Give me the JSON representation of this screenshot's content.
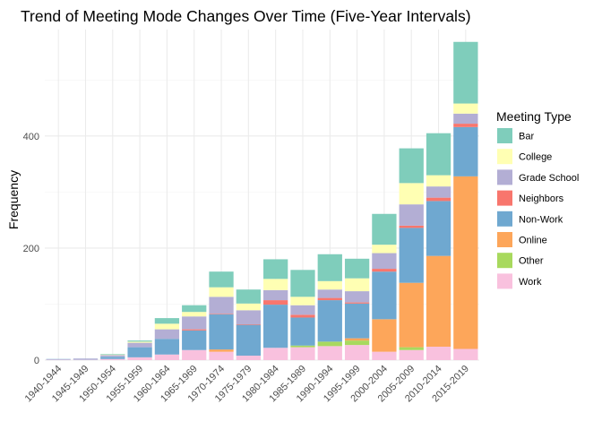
{
  "chart_data": {
    "type": "bar",
    "stacked": true,
    "title": "Trend of Meeting Mode Changes Over Time (Five-Year Intervals)",
    "xlabel": "",
    "ylabel": "Frequency",
    "ylim": [
      0,
      590
    ],
    "y_ticks": [
      0,
      200,
      400
    ],
    "grid": true,
    "legend_title": "Meeting Type",
    "legend_position": "right",
    "categories": [
      "1940-1944",
      "1945-1949",
      "1950-1954",
      "1955-1959",
      "1960-1964",
      "1965-1969",
      "1970-1974",
      "1975-1979",
      "1980-1984",
      "1985-1989",
      "1990-1994",
      "1995-1999",
      "2000-2004",
      "2005-2009",
      "2010-2014",
      "2015-2019"
    ],
    "stack_order": [
      "Work",
      "Other",
      "Online",
      "Non-Work",
      "Neighbors",
      "Grade School",
      "College",
      "Bar"
    ],
    "series": [
      {
        "name": "Bar",
        "color": "#7fcdbb",
        "values": [
          0,
          0,
          1,
          2,
          10,
          12,
          28,
          25,
          35,
          48,
          48,
          35,
          55,
          62,
          75,
          110
        ]
      },
      {
        "name": "College",
        "color": "#ffffb3",
        "values": [
          0,
          0,
          1,
          2,
          10,
          8,
          17,
          12,
          20,
          15,
          15,
          23,
          15,
          38,
          20,
          18
        ]
      },
      {
        "name": "Grade School",
        "color": "#b3aed4",
        "values": [
          0,
          1,
          3,
          8,
          17,
          23,
          30,
          25,
          18,
          17,
          15,
          20,
          28,
          38,
          20,
          18
        ]
      },
      {
        "name": "Neighbors",
        "color": "#f8766d",
        "values": [
          0,
          0,
          0,
          0,
          0,
          2,
          1,
          1,
          8,
          5,
          4,
          2,
          5,
          4,
          6,
          6
        ]
      },
      {
        "name": "Non-Work",
        "color": "#6fa8d0",
        "values": [
          1,
          1,
          4,
          18,
          28,
          35,
          63,
          55,
          77,
          50,
          74,
          62,
          85,
          98,
          98,
          88
        ]
      },
      {
        "name": "Online",
        "color": "#fda65a",
        "values": [
          0,
          0,
          0,
          0,
          0,
          0,
          4,
          0,
          0,
          0,
          0,
          4,
          58,
          115,
          162,
          308
        ]
      },
      {
        "name": "Other",
        "color": "#a8d95e",
        "values": [
          0,
          0,
          0,
          0,
          0,
          0,
          0,
          0,
          0,
          3,
          8,
          8,
          0,
          5,
          0,
          0
        ]
      },
      {
        "name": "Work",
        "color": "#f9c1de",
        "values": [
          1,
          1,
          2,
          5,
          10,
          18,
          15,
          8,
          22,
          23,
          25,
          27,
          15,
          18,
          24,
          20
        ]
      }
    ]
  }
}
